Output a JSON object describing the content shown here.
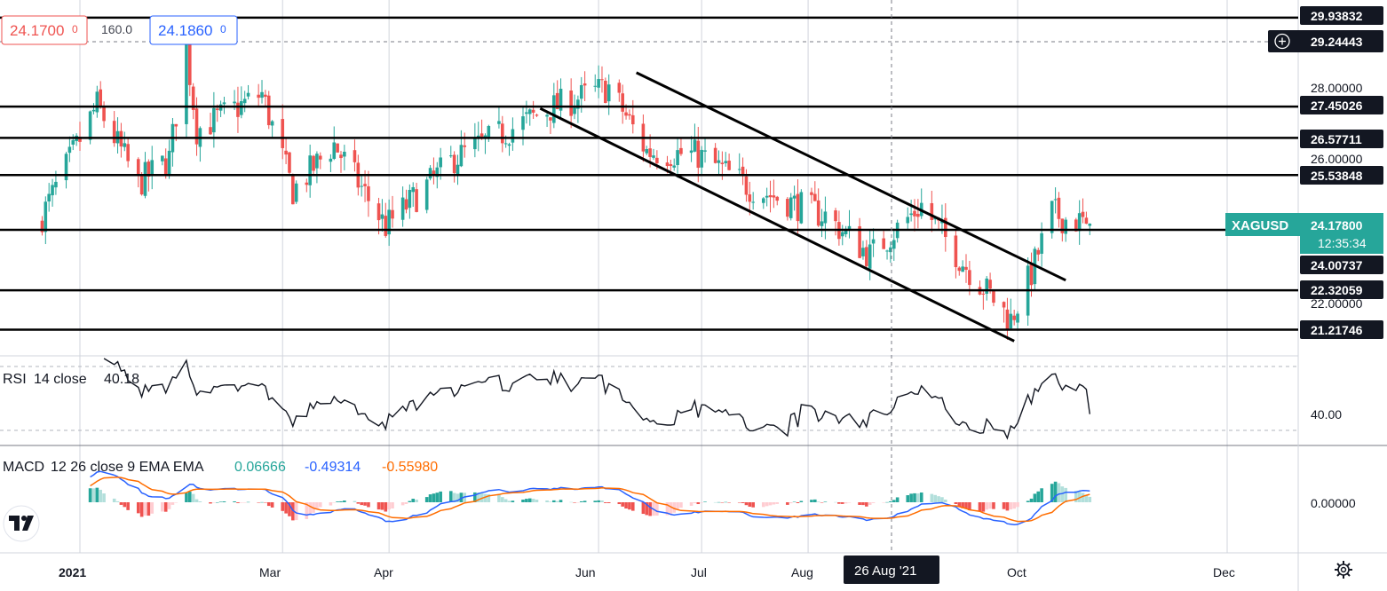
{
  "header": {
    "bid": "24.1700",
    "bid_sup": "0",
    "spread": "160.0",
    "ask": "24.1860",
    "ask_sup": "0"
  },
  "symbol": {
    "name": "XAGUSD",
    "price": "24.17800",
    "countdown": "12:35:34"
  },
  "crosshair": {
    "date_label": "26 Aug '21",
    "price_label": "29.24443"
  },
  "levels": [
    "29.93832",
    "27.45026",
    "26.57711",
    "25.53848",
    "24.00737",
    "22.32059",
    "21.21746"
  ],
  "price_axis_ticks": [
    "28.00000",
    "26.00000",
    "22.00000"
  ],
  "time_axis": [
    "2021",
    "Mar",
    "Apr",
    "Jun",
    "Jul",
    "Aug",
    "Oct",
    "Dec"
  ],
  "rsi": {
    "title": "RSI",
    "params": "14 close",
    "value": "40.18",
    "axis_label": "40.00"
  },
  "macd": {
    "title": "MACD",
    "params": "12 26 close 9 EMA EMA",
    "hist_value": "0.06666",
    "macd_value": "-0.49314",
    "signal_value": "-0.55980",
    "axis_label": "0.00000"
  },
  "colors": {
    "up": "#26a69a",
    "down": "#ef5350",
    "macd_line": "#2962ff",
    "signal_line": "#ff6d00",
    "symbol_badge": "#26a69a"
  },
  "chart_data": {
    "type": "candlestick",
    "symbol": "XAGUSD",
    "x_range": [
      "2021-01-01",
      "2021-10-22"
    ],
    "y_range": [
      20.9,
      30.3
    ],
    "close_path": [
      [
        "2020-12-20",
        24.2
      ],
      [
        "2021-01-06",
        27.5
      ],
      [
        "2021-01-18",
        25.3
      ],
      [
        "2021-01-27",
        26.0
      ],
      [
        "2021-02-01",
        29.1
      ],
      [
        "2021-02-04",
        26.8
      ],
      [
        "2021-02-23",
        27.8
      ],
      [
        "2021-03-04",
        25.1
      ],
      [
        "2021-03-16",
        26.4
      ],
      [
        "2021-03-31",
        24.1
      ],
      [
        "2021-04-20",
        26.0
      ],
      [
        "2021-05-18",
        27.4
      ],
      [
        "2021-06-04",
        28.0
      ],
      [
        "2021-06-15",
        26.2
      ],
      [
        "2021-06-30",
        26.1
      ],
      [
        "2021-07-15",
        25.2
      ],
      [
        "2021-08-06",
        24.4
      ],
      [
        "2021-08-19",
        23.3
      ],
      [
        "2021-09-03",
        24.7
      ],
      [
        "2021-09-15",
        23.1
      ],
      [
        "2021-09-29",
        21.5
      ],
      [
        "2021-10-05",
        22.8
      ],
      [
        "2021-10-11",
        24.5
      ],
      [
        "2021-10-15",
        24.3
      ],
      [
        "2021-10-22",
        24.18
      ]
    ],
    "horizontal_levels": [
      29.93832,
      27.45026,
      26.57711,
      25.53848,
      24.00737,
      22.32059,
      21.21746
    ],
    "channel_lines": [
      {
        "from": [
          "2021-06-12",
          28.4
        ],
        "to": [
          "2021-10-15",
          22.6
        ]
      },
      {
        "from": [
          "2021-05-15",
          27.4
        ],
        "to": [
          "2021-09-30",
          20.9
        ]
      }
    ],
    "rsi": {
      "period": 14,
      "last": 40.18
    },
    "macd": {
      "fast": 12,
      "slow": 26,
      "signal": 9,
      "histogram": 0.06666,
      "macd": -0.49314,
      "signal_value": -0.5598
    }
  }
}
